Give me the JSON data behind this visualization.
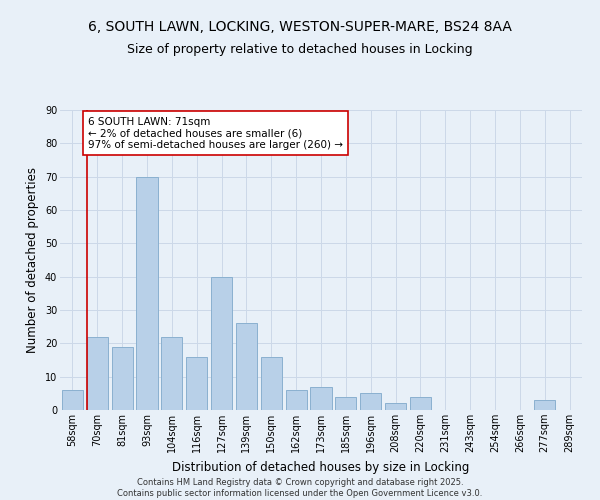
{
  "title_line1": "6, SOUTH LAWN, LOCKING, WESTON-SUPER-MARE, BS24 8AA",
  "title_line2": "Size of property relative to detached houses in Locking",
  "xlabel": "Distribution of detached houses by size in Locking",
  "ylabel": "Number of detached properties",
  "categories": [
    "58sqm",
    "70sqm",
    "81sqm",
    "93sqm",
    "104sqm",
    "116sqm",
    "127sqm",
    "139sqm",
    "150sqm",
    "162sqm",
    "173sqm",
    "185sqm",
    "196sqm",
    "208sqm",
    "220sqm",
    "231sqm",
    "243sqm",
    "254sqm",
    "266sqm",
    "277sqm",
    "289sqm"
  ],
  "values": [
    6,
    22,
    19,
    70,
    22,
    16,
    40,
    26,
    16,
    6,
    7,
    4,
    5,
    2,
    4,
    0,
    0,
    0,
    0,
    3,
    0
  ],
  "bar_color": "#b8d0e8",
  "bar_edge_color": "#8ab0d0",
  "vline_color": "#cc0000",
  "annotation_text": "6 SOUTH LAWN: 71sqm\n← 2% of detached houses are smaller (6)\n97% of semi-detached houses are larger (260) →",
  "annotation_box_color": "#cc0000",
  "annotation_bg": "#ffffff",
  "ylim": [
    0,
    90
  ],
  "yticks": [
    0,
    10,
    20,
    30,
    40,
    50,
    60,
    70,
    80,
    90
  ],
  "grid_color": "#ccd8e8",
  "background_color": "#e8f0f8",
  "footer": "Contains HM Land Registry data © Crown copyright and database right 2025.\nContains public sector information licensed under the Open Government Licence v3.0.",
  "title_fontsize": 10,
  "subtitle_fontsize": 9,
  "axis_label_fontsize": 8.5,
  "tick_fontsize": 7,
  "annotation_fontsize": 7.5,
  "footer_fontsize": 6
}
